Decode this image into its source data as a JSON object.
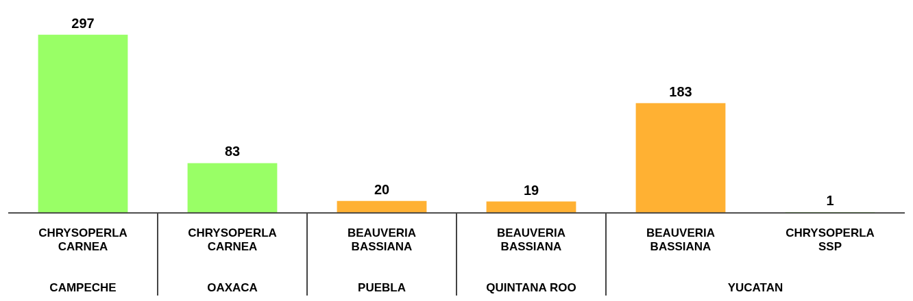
{
  "chart_data": {
    "type": "bar",
    "categories": [
      "CHRYSOPERLA CARNEA",
      "CHRYSOPERLA CARNEA",
      "BEAUVERIA BASSIANA",
      "BEAUVERIA BASSIANA",
      "BEAUVERIA BASSIANA",
      "CHRYSOPERLA SSP"
    ],
    "values": [
      297,
      83,
      20,
      19,
      183,
      1
    ],
    "colors": [
      "#99ff66",
      "#99ff66",
      "#ffb133",
      "#ffb133",
      "#ffb133",
      "#99ff66"
    ],
    "data_labels": true,
    "annotations": [
      "CAMPECHE",
      "OAXACA",
      "PUEBLA",
      "QUINTANA ROO",
      "YUCATAN"
    ],
    "grid": false,
    "legend": false
  }
}
